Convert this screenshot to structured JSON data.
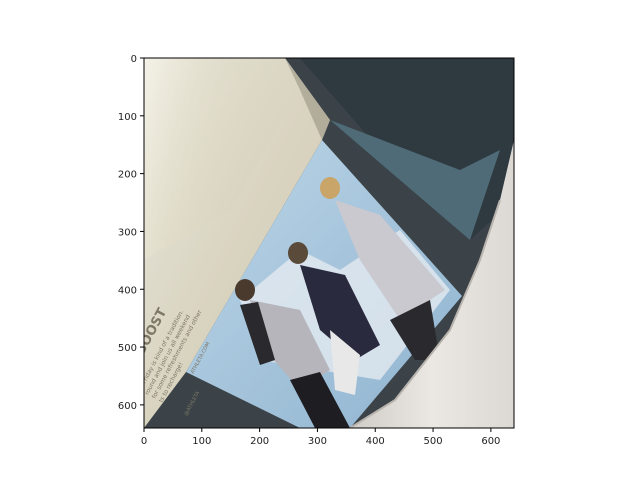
{
  "axes": {
    "x_ticks": [
      0,
      100,
      200,
      300,
      400,
      500,
      600
    ],
    "y_ticks": [
      0,
      100,
      200,
      300,
      400,
      500,
      600
    ],
    "xlim": [
      0,
      640
    ],
    "ylim": [
      640,
      0
    ]
  },
  "image": {
    "visible_text": {
      "headline": "AY BOOST",
      "body_lines": [
        "ck Friday is kind of a tradition.",
        "round and join us all weekend",
        "for some refreshments and other",
        "ts to recharge!"
      ],
      "url": "ATHLETA.COM",
      "logo": "@ATHLETA",
      "footer": "ATHLETA"
    },
    "colors": {
      "magazine_cream": "#d8d2b8",
      "page_white": "#e6e3de",
      "sky_blue": "#a9c8df",
      "dark_jacket": "#2a2a2e",
      "light_jacket": "#c9c9cf",
      "background_dark": "#3d4a50",
      "hair_blonde": "#c9a56a"
    }
  }
}
